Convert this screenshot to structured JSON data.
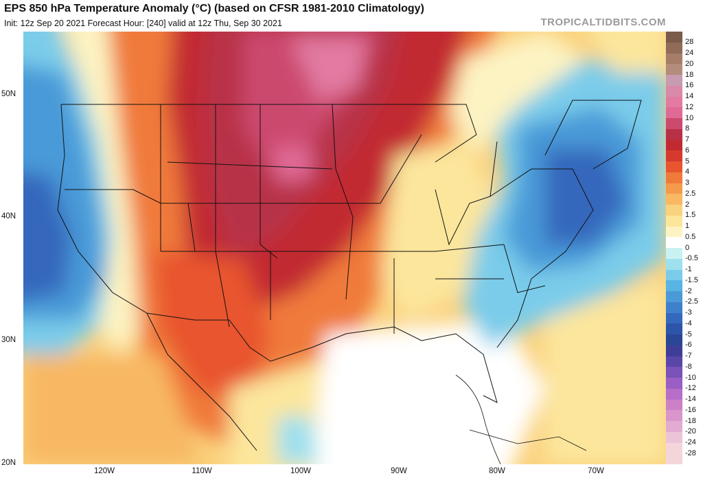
{
  "header": {
    "title": "EPS 850 hPa Temperature Anomaly (°C) (based on CFSR 1981-2010 Climatology)",
    "subtitle": "Init: 12z Sep 20 2021   Forecast Hour: [240]   valid at 12z Thu, Sep 30 2021",
    "brand": "TROPICALTIDBITS.COM"
  },
  "map": {
    "lat_labels": [
      "50N",
      "40N",
      "30N",
      "20N"
    ],
    "lon_labels": [
      "120W",
      "110W",
      "100W",
      "90W",
      "80W",
      "70W"
    ]
  },
  "colorbar": {
    "labels": [
      "28",
      "24",
      "20",
      "18",
      "16",
      "14",
      "12",
      "10",
      "8",
      "7",
      "6",
      "5",
      "4",
      "3",
      "2.5",
      "2",
      "1.5",
      "1",
      "0.5",
      "0",
      "-0.5",
      "-1",
      "-1.5",
      "-2",
      "-2.5",
      "-3",
      "-4",
      "-5",
      "-6",
      "-7",
      "-8",
      "-10",
      "-12",
      "-14",
      "-16",
      "-18",
      "-20",
      "-24",
      "-28"
    ],
    "colors": [
      "#7a5a4a",
      "#8f6b58",
      "#a57d68",
      "#b48c7c",
      "#c89cb0",
      "#d98aa8",
      "#e27aa2",
      "#e06a96",
      "#cc4a6e",
      "#b83046",
      "#c22a32",
      "#d63a2e",
      "#e8552e",
      "#f07a3a",
      "#f59a4a",
      "#f8b864",
      "#fad27e",
      "#fce69c",
      "#fdf3c2",
      "#ffffff",
      "#c8f2f2",
      "#9ee0ee",
      "#7accea",
      "#58b4e2",
      "#4a9ad8",
      "#3e80cc",
      "#3468bc",
      "#2c54a8",
      "#2a4694",
      "#3e3e98",
      "#5a46a8",
      "#7a52b8",
      "#9a5ec4",
      "#b66ec8",
      "#cc80c8",
      "#d896cc",
      "#e2acd2",
      "#ecc4d8",
      "#f4d6da"
    ]
  }
}
